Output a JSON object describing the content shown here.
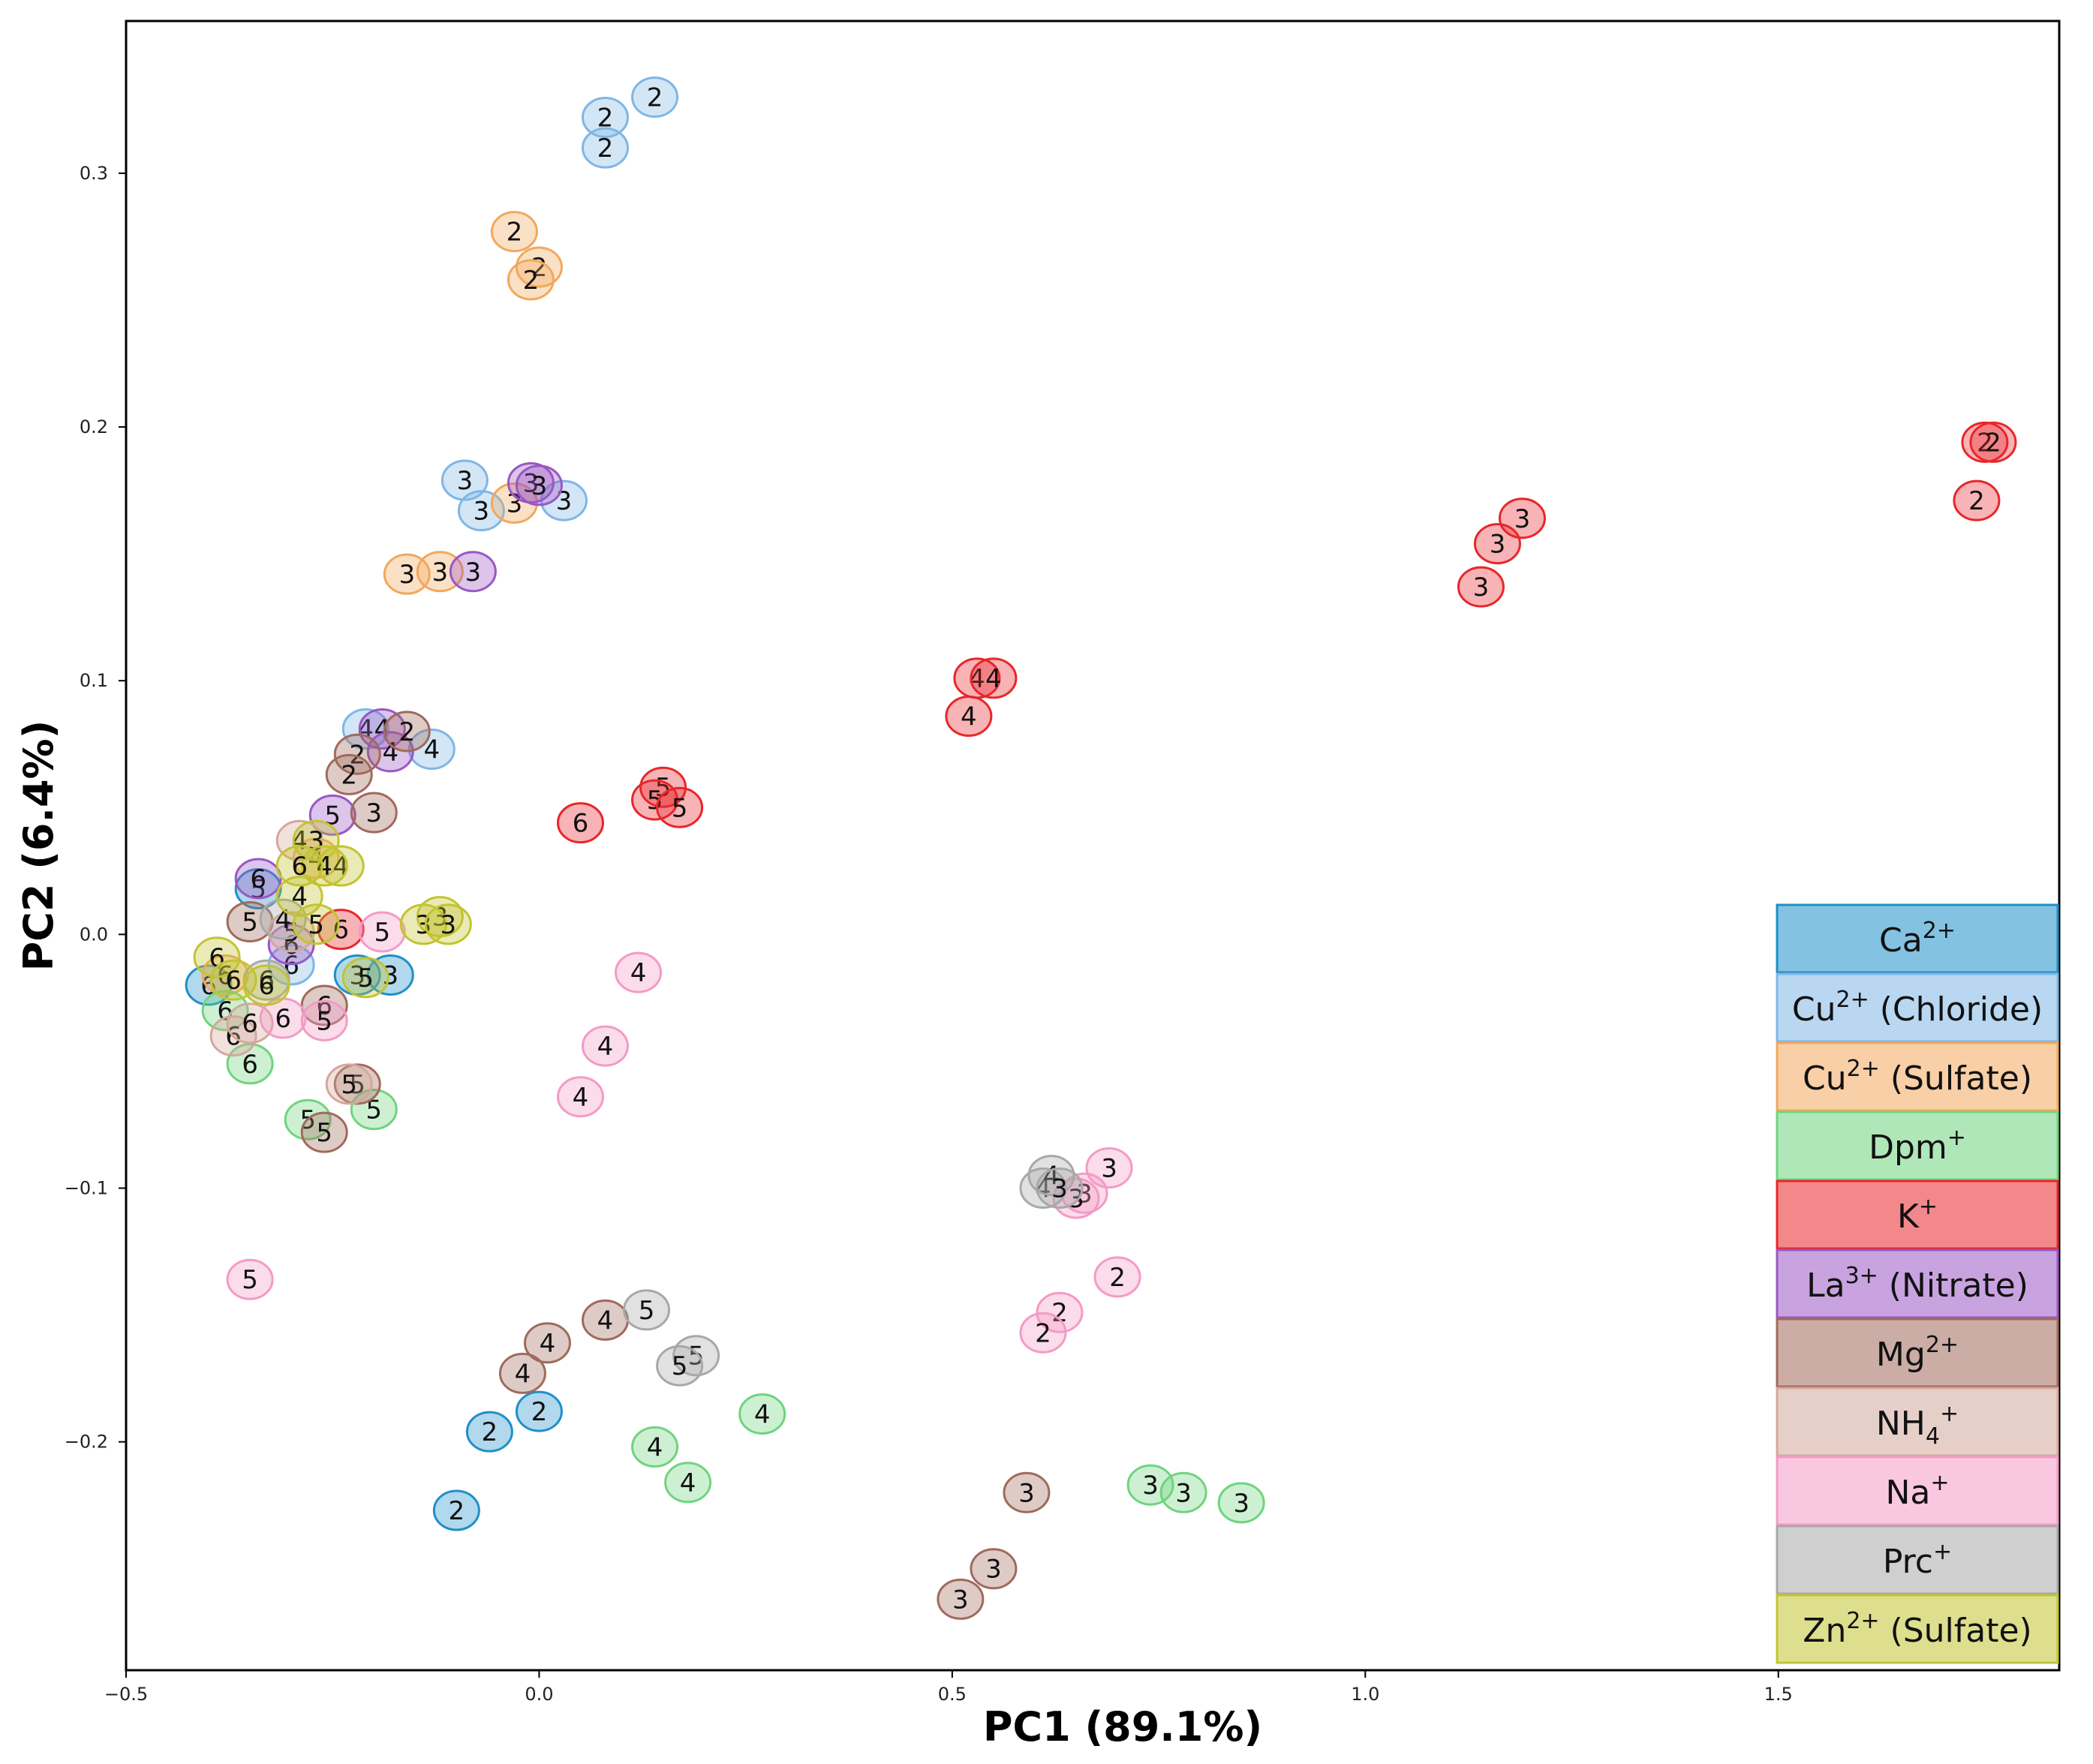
{
  "chart_data": {
    "type": "scatter",
    "title": "",
    "xlabel": "PC1 (89.1%)",
    "ylabel": "PC2 (6.4%)",
    "xlim": [
      -0.5,
      1.84
    ],
    "ylim": [
      -0.29,
      0.36
    ],
    "xticks": [
      -0.5,
      0.0,
      0.5,
      1.0,
      1.5
    ],
    "xtick_labels": [
      "−0.5",
      "0.0",
      "0.5",
      "1.0",
      "1.5"
    ],
    "yticks": [
      -0.2,
      -0.1,
      0.0,
      0.1,
      0.2,
      0.3
    ],
    "ytick_labels": [
      "−0.2",
      "−0.1",
      "0.0",
      "0.1",
      "0.2",
      "0.3"
    ],
    "grid": false,
    "legend_position": "bottom-right",
    "series": [
      {
        "name": "Ca2+",
        "label": "Ca",
        "sup": "2+",
        "suffix": "",
        "color": "#1f8fc8",
        "points": [
          {
            "x": -0.1,
            "y": -0.227,
            "label": "2"
          },
          {
            "x": -0.06,
            "y": -0.196,
            "label": "2"
          },
          {
            "x": 0.0,
            "y": -0.188,
            "label": "2"
          },
          {
            "x": -0.22,
            "y": -0.016,
            "label": "3"
          },
          {
            "x": -0.18,
            "y": -0.016,
            "label": "3"
          },
          {
            "x": -0.4,
            "y": -0.02,
            "label": "6"
          },
          {
            "x": -0.34,
            "y": 0.018,
            "label": "5"
          }
        ]
      },
      {
        "name": "Cu2+ (Chloride)",
        "label": "Cu",
        "sup": "2+",
        "suffix": " (Chloride)",
        "color": "#7fb6e6",
        "points": [
          {
            "x": 0.08,
            "y": 0.322,
            "label": "2"
          },
          {
            "x": 0.14,
            "y": 0.33,
            "label": "2"
          },
          {
            "x": 0.08,
            "y": 0.31,
            "label": "2"
          },
          {
            "x": -0.09,
            "y": 0.179,
            "label": "3"
          },
          {
            "x": -0.07,
            "y": 0.167,
            "label": "3"
          },
          {
            "x": 0.03,
            "y": 0.171,
            "label": "3"
          },
          {
            "x": -0.21,
            "y": 0.081,
            "label": "4"
          },
          {
            "x": -0.13,
            "y": 0.073,
            "label": "4"
          },
          {
            "x": -0.3,
            "y": -0.012,
            "label": "6"
          }
        ]
      },
      {
        "name": "Cu2+ (Sulfate)",
        "label": "Cu",
        "sup": "2+",
        "suffix": " (Sulfate)",
        "color": "#f2a85c",
        "points": [
          {
            "x": -0.03,
            "y": 0.277,
            "label": "2"
          },
          {
            "x": 0.0,
            "y": 0.263,
            "label": "2"
          },
          {
            "x": -0.01,
            "y": 0.258,
            "label": "2"
          },
          {
            "x": -0.03,
            "y": 0.17,
            "label": "3"
          },
          {
            "x": -0.16,
            "y": 0.142,
            "label": "3"
          },
          {
            "x": -0.12,
            "y": 0.143,
            "label": "3"
          },
          {
            "x": -0.27,
            "y": 0.03,
            "label": "4"
          },
          {
            "x": -0.38,
            "y": -0.016,
            "label": "6"
          }
        ]
      },
      {
        "name": "Dpm+",
        "label": "Dpm",
        "sup": "+",
        "suffix": "",
        "color": "#6fd47f",
        "points": [
          {
            "x": 0.27,
            "y": -0.189,
            "label": "4"
          },
          {
            "x": 0.14,
            "y": -0.202,
            "label": "4"
          },
          {
            "x": 0.18,
            "y": -0.216,
            "label": "4"
          },
          {
            "x": 0.74,
            "y": -0.217,
            "label": "3"
          },
          {
            "x": 0.78,
            "y": -0.22,
            "label": "3"
          },
          {
            "x": 0.85,
            "y": -0.224,
            "label": "3"
          },
          {
            "x": -0.2,
            "y": -0.069,
            "label": "5"
          },
          {
            "x": -0.28,
            "y": -0.073,
            "label": "5"
          },
          {
            "x": -0.35,
            "y": -0.051,
            "label": "6"
          },
          {
            "x": -0.38,
            "y": -0.03,
            "label": "6"
          }
        ]
      },
      {
        "name": "K+",
        "label": "K",
        "sup": "+",
        "suffix": "",
        "color": "#e8262a",
        "points": [
          {
            "x": 1.75,
            "y": 0.194,
            "label": "2"
          },
          {
            "x": 1.76,
            "y": 0.194,
            "label": "2"
          },
          {
            "x": 1.74,
            "y": 0.171,
            "label": "2"
          },
          {
            "x": 1.19,
            "y": 0.164,
            "label": "3"
          },
          {
            "x": 1.16,
            "y": 0.154,
            "label": "3"
          },
          {
            "x": 1.14,
            "y": 0.137,
            "label": "3"
          },
          {
            "x": 0.53,
            "y": 0.101,
            "label": "4"
          },
          {
            "x": 0.55,
            "y": 0.101,
            "label": "4"
          },
          {
            "x": 0.52,
            "y": 0.086,
            "label": "4"
          },
          {
            "x": 0.15,
            "y": 0.058,
            "label": "5"
          },
          {
            "x": 0.14,
            "y": 0.053,
            "label": "5"
          },
          {
            "x": 0.17,
            "y": 0.05,
            "label": "5"
          },
          {
            "x": 0.05,
            "y": 0.044,
            "label": "6"
          },
          {
            "x": -0.24,
            "y": 0.002,
            "label": "6"
          }
        ]
      },
      {
        "name": "La3+ (Nitrate)",
        "label": "La",
        "sup": "3+",
        "suffix": " (Nitrate)",
        "color": "#9a57c4",
        "points": [
          {
            "x": -0.01,
            "y": 0.178,
            "label": "3"
          },
          {
            "x": 0.0,
            "y": 0.177,
            "label": "3"
          },
          {
            "x": -0.08,
            "y": 0.143,
            "label": "3"
          },
          {
            "x": -0.19,
            "y": 0.081,
            "label": "4"
          },
          {
            "x": -0.18,
            "y": 0.072,
            "label": "4"
          },
          {
            "x": -0.25,
            "y": 0.047,
            "label": "5"
          },
          {
            "x": -0.34,
            "y": 0.022,
            "label": "6"
          },
          {
            "x": -0.3,
            "y": -0.004,
            "label": "6"
          }
        ]
      },
      {
        "name": "Mg2+",
        "label": "Mg",
        "sup": "2+",
        "suffix": "",
        "color": "#a06a5c",
        "points": [
          {
            "x": -0.16,
            "y": 0.08,
            "label": "2"
          },
          {
            "x": -0.22,
            "y": 0.071,
            "label": "2"
          },
          {
            "x": -0.23,
            "y": 0.063,
            "label": "2"
          },
          {
            "x": -0.2,
            "y": 0.048,
            "label": "3"
          },
          {
            "x": 0.59,
            "y": -0.22,
            "label": "3"
          },
          {
            "x": 0.55,
            "y": -0.25,
            "label": "3"
          },
          {
            "x": 0.51,
            "y": -0.262,
            "label": "3"
          },
          {
            "x": 0.08,
            "y": -0.152,
            "label": "4"
          },
          {
            "x": 0.01,
            "y": -0.161,
            "label": "4"
          },
          {
            "x": -0.02,
            "y": -0.173,
            "label": "4"
          },
          {
            "x": -0.22,
            "y": -0.059,
            "label": "5"
          },
          {
            "x": -0.26,
            "y": -0.078,
            "label": "5"
          },
          {
            "x": -0.35,
            "y": 0.005,
            "label": "5"
          },
          {
            "x": -0.26,
            "y": -0.028,
            "label": "6"
          }
        ]
      },
      {
        "name": "NH4+",
        "label": "NH",
        "sub": "4",
        "sup": "+",
        "suffix": "",
        "color": "#d4a89c",
        "points": [
          {
            "x": -0.29,
            "y": 0.037,
            "label": "4"
          },
          {
            "x": -0.23,
            "y": -0.059,
            "label": "5"
          },
          {
            "x": -0.3,
            "y": 0.001,
            "label": "5"
          },
          {
            "x": -0.37,
            "y": -0.04,
            "label": "6"
          },
          {
            "x": -0.35,
            "y": -0.035,
            "label": "6"
          }
        ]
      },
      {
        "name": "Na+",
        "label": "Na",
        "sup": "+",
        "suffix": "",
        "color": "#f49ac6",
        "points": [
          {
            "x": 0.7,
            "y": -0.135,
            "label": "2"
          },
          {
            "x": 0.63,
            "y": -0.149,
            "label": "2"
          },
          {
            "x": 0.61,
            "y": -0.157,
            "label": "2"
          },
          {
            "x": 0.69,
            "y": -0.092,
            "label": "3"
          },
          {
            "x": 0.66,
            "y": -0.102,
            "label": "3"
          },
          {
            "x": 0.65,
            "y": -0.104,
            "label": "3"
          },
          {
            "x": 0.12,
            "y": -0.015,
            "label": "4"
          },
          {
            "x": 0.08,
            "y": -0.044,
            "label": "4"
          },
          {
            "x": 0.05,
            "y": -0.064,
            "label": "4"
          },
          {
            "x": -0.35,
            "y": -0.136,
            "label": "5"
          },
          {
            "x": -0.19,
            "y": 0.001,
            "label": "5"
          },
          {
            "x": -0.26,
            "y": -0.034,
            "label": "5"
          },
          {
            "x": -0.31,
            "y": -0.033,
            "label": "6"
          }
        ]
      },
      {
        "name": "Prc+",
        "label": "Prc",
        "sup": "+",
        "suffix": "",
        "color": "#a8a8a8",
        "points": [
          {
            "x": 0.61,
            "y": -0.1,
            "label": "4"
          },
          {
            "x": 0.62,
            "y": -0.095,
            "label": "4"
          },
          {
            "x": 0.63,
            "y": -0.1,
            "label": "3"
          },
          {
            "x": 0.13,
            "y": -0.148,
            "label": "5"
          },
          {
            "x": 0.19,
            "y": -0.166,
            "label": "5"
          },
          {
            "x": 0.17,
            "y": -0.17,
            "label": "5"
          },
          {
            "x": -0.31,
            "y": 0.006,
            "label": "4"
          },
          {
            "x": -0.33,
            "y": -0.018,
            "label": "6"
          }
        ]
      },
      {
        "name": "Zn2+ (Sulfate)",
        "label": "Zn",
        "sup": "2+",
        "suffix": " (Sulfate)",
        "color": "#c2c431",
        "points": [
          {
            "x": -0.12,
            "y": 0.007,
            "label": "3"
          },
          {
            "x": -0.14,
            "y": 0.004,
            "label": "3"
          },
          {
            "x": -0.11,
            "y": 0.004,
            "label": "3"
          },
          {
            "x": -0.27,
            "y": 0.037,
            "label": "3"
          },
          {
            "x": -0.24,
            "y": 0.027,
            "label": "4"
          },
          {
            "x": -0.26,
            "y": 0.027,
            "label": "4"
          },
          {
            "x": -0.29,
            "y": 0.015,
            "label": "4"
          },
          {
            "x": -0.21,
            "y": -0.017,
            "label": "5"
          },
          {
            "x": -0.27,
            "y": 0.004,
            "label": "5"
          },
          {
            "x": -0.39,
            "y": -0.009,
            "label": "6"
          },
          {
            "x": -0.37,
            "y": -0.018,
            "label": "6"
          },
          {
            "x": -0.33,
            "y": -0.02,
            "label": "6"
          },
          {
            "x": -0.29,
            "y": 0.027,
            "label": "6"
          }
        ]
      }
    ]
  }
}
